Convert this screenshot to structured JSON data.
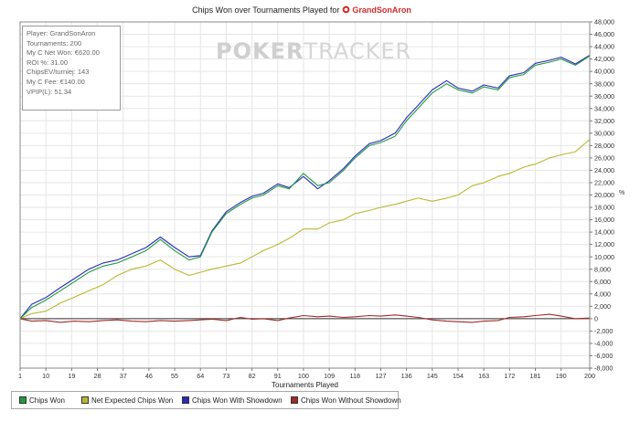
{
  "header": {
    "title_prefix": "Chips Won over Tournaments Played for",
    "player": "GrandSonAron",
    "logo_icon": "poker-chip-icon"
  },
  "info": {
    "lines": [
      "Player: GrandSonAron",
      "Tournaments: 200",
      "My C Net Won: €620.00",
      "ROI %: 31.00",
      "ChipsEV/turniej: 143",
      "My C Fee: €140.00",
      "VPIP(L): 51.34"
    ]
  },
  "watermark": {
    "left": "PO",
    "mid": "KER",
    "right": "TRACKER"
  },
  "percent_mark": "%",
  "legend": [
    {
      "label": "Chips Won",
      "color": "#1f9a3f"
    },
    {
      "label": "Net Expected Chips Won",
      "color": "#b8b832"
    },
    {
      "label": "Chips Won With Showdown",
      "color": "#2b2bb8"
    },
    {
      "label": "Chips Won Without Showdown",
      "color": "#a12a2a"
    }
  ],
  "chart_data": {
    "type": "line",
    "title": "Chips Won over Tournaments Played for GrandSonAron",
    "xlabel": "Tournaments Played",
    "ylabel": "",
    "xlim": [
      1,
      200
    ],
    "ylim": [
      -8000,
      48000
    ],
    "xticks": [
      1,
      10,
      19,
      28,
      37,
      46,
      55,
      64,
      73,
      82,
      91,
      100,
      109,
      118,
      127,
      136,
      145,
      154,
      163,
      172,
      181,
      190,
      200
    ],
    "yticks": [
      -8000,
      -6000,
      -4000,
      -2000,
      0,
      2000,
      4000,
      6000,
      8000,
      10000,
      12000,
      14000,
      16000,
      18000,
      20000,
      22000,
      24000,
      26000,
      28000,
      30000,
      32000,
      34000,
      36000,
      38000,
      40000,
      42000,
      44000,
      46000,
      48000
    ],
    "ytick_labels": [
      "-8,000",
      "-6,000",
      "-4,000",
      "-2,000",
      "0",
      "2,000",
      "4,000",
      "6,000",
      "8,000",
      "10,000",
      "12,000",
      "14,000",
      "16,000",
      "18,000",
      "20,000",
      "22,000",
      "24,000",
      "26,000",
      "28,000",
      "30,000",
      "32,000",
      "34,000",
      "36,000",
      "38,000",
      "40,000",
      "42,000",
      "44,000",
      "46,000",
      "48,000"
    ],
    "grid": true,
    "legend_position": "bottom",
    "series": [
      {
        "name": "Chips Won",
        "color": "#1f9a3f",
        "x": [
          1,
          5,
          10,
          15,
          20,
          25,
          30,
          35,
          40,
          45,
          50,
          55,
          60,
          64,
          68,
          73,
          78,
          82,
          86,
          91,
          95,
          100,
          105,
          109,
          114,
          118,
          123,
          127,
          132,
          136,
          140,
          145,
          150,
          154,
          159,
          163,
          168,
          172,
          177,
          181,
          186,
          190,
          195,
          200
        ],
        "values": [
          0,
          1800,
          3000,
          4500,
          6000,
          7500,
          8500,
          9000,
          10000,
          11000,
          12800,
          11000,
          9500,
          10000,
          14000,
          17000,
          18500,
          19500,
          20000,
          21500,
          21000,
          23500,
          21500,
          22000,
          24000,
          26000,
          28000,
          28500,
          29500,
          32000,
          34000,
          36500,
          38000,
          37000,
          36500,
          37500,
          37000,
          39000,
          39500,
          41000,
          41500,
          42000,
          41000,
          42500
        ]
      },
      {
        "name": "Net Expected Chips Won",
        "color": "#b8b832",
        "x": [
          1,
          5,
          10,
          15,
          20,
          25,
          30,
          35,
          40,
          45,
          50,
          55,
          60,
          64,
          68,
          73,
          78,
          82,
          86,
          91,
          95,
          100,
          105,
          109,
          114,
          118,
          123,
          127,
          132,
          136,
          140,
          145,
          150,
          154,
          159,
          163,
          168,
          172,
          177,
          181,
          186,
          190,
          195,
          200
        ],
        "values": [
          0,
          800,
          1200,
          2500,
          3500,
          4500,
          5500,
          7000,
          8000,
          8500,
          9500,
          8000,
          7000,
          7500,
          8000,
          8500,
          9000,
          10000,
          11000,
          12000,
          13000,
          14500,
          14500,
          15500,
          16000,
          17000,
          17500,
          18000,
          18500,
          19000,
          19500,
          19000,
          19500,
          20000,
          21500,
          22000,
          23000,
          23500,
          24500,
          25000,
          26000,
          26500,
          27000,
          29000
        ]
      },
      {
        "name": "Chips Won With Showdown",
        "color": "#2b2bb8",
        "x": [
          1,
          5,
          10,
          15,
          20,
          25,
          30,
          35,
          40,
          45,
          50,
          55,
          60,
          64,
          68,
          73,
          78,
          82,
          86,
          91,
          95,
          100,
          105,
          109,
          114,
          118,
          123,
          127,
          132,
          136,
          140,
          145,
          150,
          154,
          159,
          163,
          168,
          172,
          177,
          181,
          186,
          190,
          195,
          200
        ],
        "values": [
          0,
          2300,
          3400,
          5000,
          6500,
          8000,
          9000,
          9500,
          10500,
          11500,
          13200,
          11500,
          10000,
          10200,
          14200,
          17300,
          18800,
          19800,
          20300,
          21800,
          21200,
          23000,
          21000,
          22300,
          24300,
          26300,
          28300,
          28800,
          30000,
          32500,
          34500,
          37000,
          38500,
          37300,
          36800,
          37800,
          37300,
          39300,
          39800,
          41300,
          41800,
          42300,
          41200,
          42600
        ]
      },
      {
        "name": "Chips Won Without Showdown",
        "color": "#a12a2a",
        "x": [
          1,
          5,
          10,
          15,
          20,
          25,
          30,
          35,
          40,
          45,
          50,
          55,
          60,
          64,
          68,
          73,
          78,
          82,
          86,
          91,
          95,
          100,
          105,
          109,
          114,
          118,
          123,
          127,
          132,
          136,
          140,
          145,
          150,
          154,
          159,
          163,
          168,
          172,
          177,
          181,
          186,
          190,
          195,
          200
        ],
        "values": [
          0,
          -400,
          -300,
          -600,
          -400,
          -500,
          -300,
          -200,
          -400,
          -500,
          -300,
          -400,
          -300,
          -200,
          -100,
          -300,
          200,
          -100,
          0,
          -300,
          100,
          500,
          300,
          400,
          200,
          300,
          500,
          400,
          600,
          400,
          200,
          -200,
          -400,
          -500,
          -600,
          -400,
          -300,
          200,
          300,
          500,
          700,
          400,
          0,
          100
        ]
      }
    ]
  }
}
